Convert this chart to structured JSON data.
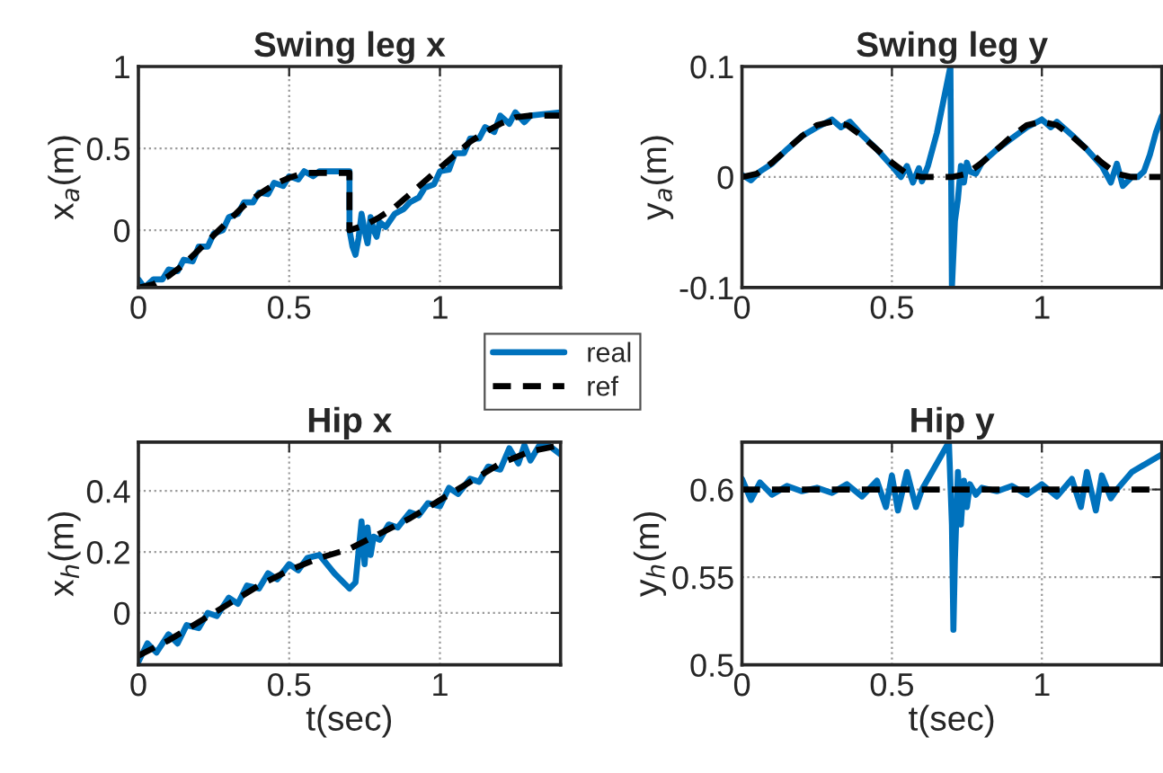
{
  "chart_data": [
    {
      "type": "line",
      "title": "Swing leg x",
      "ylabel": "x$_{a}$(m)",
      "xlim": [
        0,
        1.4
      ],
      "ylim": [
        -0.35,
        1
      ],
      "xticks": [
        0,
        0.5,
        1
      ],
      "yticks": [
        0,
        0.5,
        1
      ],
      "grid": true,
      "legend": "bottom right",
      "series": [
        {
          "name": "real",
          "color": "#0072bd",
          "line_style": "solid",
          "x": [
            0,
            0.02,
            0.05,
            0.08,
            0.1,
            0.13,
            0.15,
            0.18,
            0.2,
            0.23,
            0.25,
            0.28,
            0.3,
            0.33,
            0.35,
            0.38,
            0.4,
            0.43,
            0.45,
            0.48,
            0.5,
            0.53,
            0.55,
            0.58,
            0.6,
            0.65,
            0.7,
            0.7,
            0.71,
            0.72,
            0.73,
            0.74,
            0.75,
            0.76,
            0.77,
            0.78,
            0.79,
            0.8,
            0.82,
            0.85,
            0.88,
            0.9,
            0.93,
            0.95,
            0.98,
            1.0,
            1.03,
            1.05,
            1.08,
            1.1,
            1.13,
            1.15,
            1.18,
            1.2,
            1.23,
            1.25,
            1.28,
            1.3,
            1.35,
            1.4
          ],
          "values": [
            -0.3,
            -0.35,
            -0.3,
            -0.3,
            -0.24,
            -0.25,
            -0.18,
            -0.19,
            -0.1,
            -0.1,
            -0.02,
            0.0,
            0.08,
            0.1,
            0.17,
            0.17,
            0.23,
            0.22,
            0.29,
            0.27,
            0.33,
            0.31,
            0.36,
            0.33,
            0.36,
            0.36,
            0.36,
            0.0,
            -0.1,
            -0.15,
            -0.05,
            0.1,
            0.0,
            -0.08,
            0.08,
            0.0,
            -0.04,
            0.05,
            0.02,
            0.1,
            0.13,
            0.17,
            0.2,
            0.26,
            0.28,
            0.36,
            0.37,
            0.47,
            0.47,
            0.56,
            0.56,
            0.63,
            0.6,
            0.7,
            0.65,
            0.72,
            0.66,
            0.7,
            0.71,
            0.72
          ]
        },
        {
          "name": "ref",
          "color": "#000000",
          "line_style": "dashed",
          "x": [
            0,
            0.05,
            0.1,
            0.15,
            0.2,
            0.25,
            0.3,
            0.35,
            0.4,
            0.45,
            0.5,
            0.55,
            0.6,
            0.65,
            0.7,
            0.7,
            0.75,
            0.8,
            0.85,
            0.9,
            0.95,
            1.0,
            1.05,
            1.1,
            1.15,
            1.2,
            1.25,
            1.3,
            1.35,
            1.4
          ],
          "values": [
            -0.35,
            -0.33,
            -0.28,
            -0.21,
            -0.12,
            -0.03,
            0.06,
            0.15,
            0.22,
            0.28,
            0.32,
            0.35,
            0.35,
            0.35,
            0.35,
            0.0,
            0.03,
            0.08,
            0.14,
            0.22,
            0.3,
            0.38,
            0.46,
            0.54,
            0.6,
            0.65,
            0.69,
            0.7,
            0.7,
            0.7
          ]
        }
      ]
    },
    {
      "type": "line",
      "title": "Swing leg y",
      "ylabel": "y$_{a}$(m)",
      "xlim": [
        0,
        1.4
      ],
      "ylim": [
        -0.1,
        0.1
      ],
      "xticks": [
        0,
        0.5,
        1
      ],
      "yticks": [
        -0.1,
        0,
        0.1
      ],
      "grid": true,
      "series": [
        {
          "color": "#0072bd",
          "line_style": "solid",
          "x": [
            0,
            0.03,
            0.06,
            0.1,
            0.15,
            0.2,
            0.25,
            0.3,
            0.33,
            0.36,
            0.4,
            0.45,
            0.5,
            0.53,
            0.55,
            0.57,
            0.59,
            0.6,
            0.62,
            0.65,
            0.68,
            0.695,
            0.7,
            0.705,
            0.71,
            0.72,
            0.73,
            0.74,
            0.75,
            0.76,
            0.78,
            0.8,
            0.85,
            0.9,
            0.95,
            1.0,
            1.03,
            1.05,
            1.1,
            1.15,
            1.2,
            1.23,
            1.25,
            1.27,
            1.3,
            1.32,
            1.34,
            1.36,
            1.38,
            1.4
          ],
          "values": [
            0.002,
            -0.003,
            0.005,
            0.012,
            0.025,
            0.037,
            0.045,
            0.052,
            0.045,
            0.05,
            0.038,
            0.025,
            0.01,
            0.0,
            0.01,
            -0.005,
            0.008,
            -0.004,
            0.01,
            0.04,
            0.08,
            0.1,
            -0.1,
            -0.07,
            -0.04,
            -0.02,
            0.01,
            -0.005,
            0.013,
            0.005,
            0.003,
            0.013,
            0.025,
            0.035,
            0.045,
            0.052,
            0.045,
            0.05,
            0.038,
            0.025,
            0.01,
            -0.005,
            0.012,
            -0.008,
            0.0,
            0.0,
            0.005,
            0.02,
            0.04,
            0.055
          ]
        },
        {
          "color": "#000000",
          "line_style": "dashed",
          "x": [
            0,
            0.05,
            0.1,
            0.15,
            0.2,
            0.25,
            0.3,
            0.35,
            0.4,
            0.45,
            0.5,
            0.55,
            0.6,
            0.65,
            0.7,
            0.75,
            0.8,
            0.85,
            0.9,
            0.95,
            1.0,
            1.05,
            1.1,
            1.15,
            1.2,
            1.25,
            1.3,
            1.35,
            1.4
          ],
          "values": [
            0,
            0.003,
            0.013,
            0.025,
            0.037,
            0.047,
            0.05,
            0.047,
            0.037,
            0.025,
            0.013,
            0.003,
            0,
            0,
            0,
            0.003,
            0.013,
            0.025,
            0.037,
            0.047,
            0.05,
            0.047,
            0.037,
            0.025,
            0.013,
            0.003,
            0,
            0,
            0
          ]
        }
      ]
    },
    {
      "type": "line",
      "title": "Hip x",
      "xlabel": "t(sec)",
      "ylabel": "x$_{h}$(m)",
      "xlim": [
        0,
        1.4
      ],
      "ylim": [
        -0.17,
        0.56
      ],
      "xticks": [
        0,
        0.5,
        1
      ],
      "yticks": [
        0,
        0.2,
        0.4
      ],
      "grid": true,
      "series": [
        {
          "color": "#0072bd",
          "line_style": "solid",
          "x": [
            0,
            0.03,
            0.06,
            0.1,
            0.13,
            0.16,
            0.2,
            0.23,
            0.26,
            0.3,
            0.33,
            0.36,
            0.4,
            0.43,
            0.46,
            0.5,
            0.53,
            0.56,
            0.6,
            0.65,
            0.7,
            0.72,
            0.74,
            0.75,
            0.76,
            0.77,
            0.78,
            0.8,
            0.83,
            0.86,
            0.9,
            0.93,
            0.96,
            1.0,
            1.03,
            1.06,
            1.1,
            1.13,
            1.16,
            1.2,
            1.23,
            1.26,
            1.28,
            1.3,
            1.33,
            1.36,
            1.4
          ],
          "values": [
            -0.16,
            -0.1,
            -0.13,
            -0.07,
            -0.1,
            -0.04,
            -0.05,
            0.0,
            -0.01,
            0.05,
            0.03,
            0.09,
            0.08,
            0.13,
            0.11,
            0.16,
            0.14,
            0.18,
            0.19,
            0.13,
            0.08,
            0.1,
            0.3,
            0.16,
            0.28,
            0.19,
            0.25,
            0.24,
            0.29,
            0.28,
            0.33,
            0.32,
            0.36,
            0.35,
            0.41,
            0.39,
            0.44,
            0.43,
            0.48,
            0.47,
            0.54,
            0.49,
            0.55,
            0.5,
            0.55,
            0.55,
            0.52
          ]
        },
        {
          "color": "#000000",
          "line_style": "dashed",
          "x": [
            0,
            0.1,
            0.2,
            0.3,
            0.4,
            0.5,
            0.6,
            0.7,
            0.8,
            0.9,
            1.0,
            1.1,
            1.2,
            1.3,
            1.35,
            1.4
          ],
          "values": [
            -0.14,
            -0.09,
            -0.03,
            0.03,
            0.09,
            0.14,
            0.18,
            0.21,
            0.26,
            0.31,
            0.37,
            0.43,
            0.49,
            0.53,
            0.54,
            0.55
          ]
        }
      ]
    },
    {
      "type": "line",
      "title": "Hip y",
      "xlabel": "t(sec)",
      "ylabel": "y$_{h}$(m)",
      "xlim": [
        0,
        1.4
      ],
      "ylim": [
        0.5,
        0.627
      ],
      "xticks": [
        0,
        0.5,
        1
      ],
      "yticks": [
        0.5,
        0.55,
        0.6
      ],
      "grid": true,
      "series": [
        {
          "color": "#0072bd",
          "line_style": "solid",
          "x": [
            0,
            0.03,
            0.06,
            0.1,
            0.15,
            0.2,
            0.25,
            0.3,
            0.35,
            0.4,
            0.45,
            0.48,
            0.5,
            0.52,
            0.55,
            0.58,
            0.6,
            0.65,
            0.69,
            0.7,
            0.705,
            0.71,
            0.72,
            0.73,
            0.74,
            0.75,
            0.76,
            0.78,
            0.8,
            0.85,
            0.9,
            0.95,
            1.0,
            1.05,
            1.1,
            1.13,
            1.15,
            1.18,
            1.2,
            1.23,
            1.25,
            1.3,
            1.35,
            1.4
          ],
          "values": [
            0.606,
            0.594,
            0.604,
            0.597,
            0.602,
            0.599,
            0.601,
            0.598,
            0.603,
            0.596,
            0.605,
            0.59,
            0.608,
            0.588,
            0.61,
            0.59,
            0.6,
            0.615,
            0.627,
            0.58,
            0.52,
            0.56,
            0.61,
            0.58,
            0.605,
            0.59,
            0.603,
            0.597,
            0.601,
            0.599,
            0.602,
            0.597,
            0.603,
            0.596,
            0.606,
            0.59,
            0.61,
            0.588,
            0.608,
            0.595,
            0.6,
            0.61,
            0.615,
            0.62
          ]
        },
        {
          "color": "#000000",
          "line_style": "dashed",
          "x": [
            0,
            1.4
          ],
          "values": [
            0.6,
            0.6
          ]
        }
      ]
    }
  ]
}
